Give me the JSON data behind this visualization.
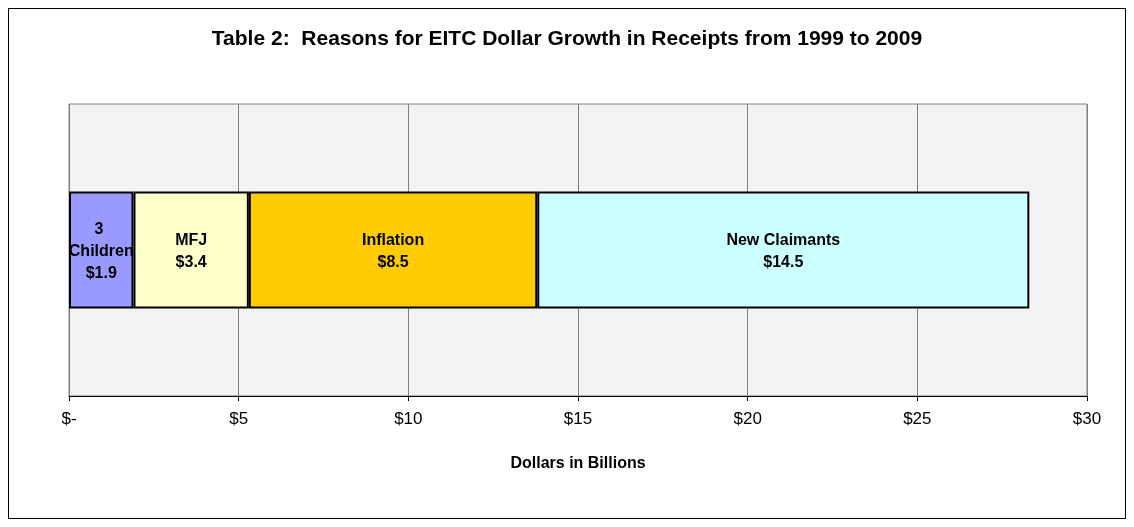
{
  "chart_data": {
    "type": "bar",
    "orientation": "horizontal",
    "stacked": true,
    "title": "Table 2:  Reasons for EITC Dollar Growth in Receipts from 1999 to 2009",
    "xlabel": "Dollars in Billions",
    "categories": [
      null
    ],
    "series": [
      {
        "name": "3 Children",
        "color": "#9999ff",
        "values": [
          1.9
        ],
        "value_labels": [
          "$1.9"
        ]
      },
      {
        "name": "MFJ",
        "color": "#ffffcc",
        "values": [
          3.4
        ],
        "value_labels": [
          "$3.4"
        ]
      },
      {
        "name": "Inflation",
        "color": "#ffcc00",
        "values": [
          8.5
        ],
        "value_labels": [
          "$8.5"
        ]
      },
      {
        "name": "New Claimants",
        "color": "#ccffff",
        "values": [
          14.5
        ],
        "value_labels": [
          "$14.5"
        ]
      }
    ],
    "xlim": [
      0,
      30
    ],
    "xticks": [
      {
        "value": 0,
        "label": "$-"
      },
      {
        "value": 5,
        "label": "$5"
      },
      {
        "value": 10,
        "label": "$10"
      },
      {
        "value": 15,
        "label": "$15"
      },
      {
        "value": 20,
        "label": "$20"
      },
      {
        "value": 25,
        "label": "$25"
      },
      {
        "value": 30,
        "label": "$30"
      }
    ],
    "grid": "x",
    "legend": false
  }
}
